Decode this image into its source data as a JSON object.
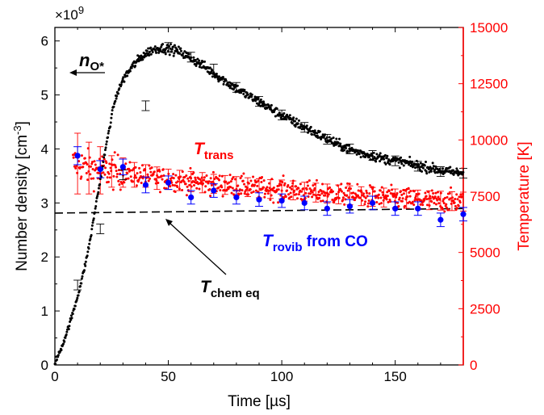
{
  "chart_data": {
    "type": "scatter",
    "title": "",
    "xlabel": "Time [µs]",
    "ylabel_left": "Number density [cm",
    "ylabel_left_sup": "-3",
    "ylabel_left_end": "]",
    "ylabel_right": "Temperature [K]",
    "multiplier": "×10",
    "multiplier_exp": "9",
    "xlim": [
      0,
      180
    ],
    "ylim_left": [
      0,
      6.25
    ],
    "ylim_right": [
      0,
      15000
    ],
    "xticks": [
      0,
      50,
      100,
      150
    ],
    "yticks_left": [
      0,
      1,
      2,
      3,
      4,
      5,
      6
    ],
    "yticks_right": [
      0,
      2500,
      5000,
      7500,
      10000,
      12500,
      15000
    ],
    "colors": {
      "density": "#000000",
      "trans": "#ff0000",
      "rovib": "#0000ff",
      "right_axis": "#ff0000",
      "chem_eq": "#000000"
    },
    "annotations": {
      "n_main": "n",
      "n_sub": "O*",
      "t_trans_main": "T",
      "t_trans_sub": "trans",
      "t_rovib_main": "T",
      "t_rovib_sub": "rovib",
      "t_rovib_suffix": " from CO",
      "t_chem_main": "T",
      "t_chem_sub": "chem eq"
    },
    "series": [
      {
        "label": "n_O*",
        "axis": "left",
        "style": "scatter",
        "x": [
          0,
          2,
          4,
          6,
          8,
          10,
          12,
          14,
          16,
          18,
          20,
          22,
          24,
          26,
          28,
          30,
          34,
          38,
          42,
          46,
          50,
          55,
          60,
          65,
          70,
          75,
          80,
          85,
          90,
          95,
          100,
          105,
          110,
          115,
          120,
          125,
          130,
          135,
          140,
          145,
          150,
          155,
          160,
          165,
          170,
          175,
          178
        ],
        "y": [
          0.05,
          0.22,
          0.45,
          0.7,
          0.97,
          1.27,
          1.6,
          1.98,
          2.42,
          2.95,
          3.42,
          3.92,
          4.38,
          4.82,
          5.08,
          5.28,
          5.52,
          5.7,
          5.82,
          5.87,
          5.86,
          5.8,
          5.68,
          5.55,
          5.4,
          5.26,
          5.12,
          4.99,
          4.87,
          4.75,
          4.62,
          4.51,
          4.4,
          4.29,
          4.18,
          4.08,
          3.99,
          3.92,
          3.87,
          3.82,
          3.78,
          3.74,
          3.69,
          3.65,
          3.6,
          3.57,
          3.56
        ],
        "error_x": [
          10,
          20,
          30,
          40,
          50,
          60,
          70,
          80,
          90,
          100,
          110,
          120,
          130,
          140,
          150,
          160,
          170,
          180
        ],
        "error_y": [
          1.48,
          2.52,
          3.52,
          4.8,
          5.88,
          5.7,
          5.48,
          5.14,
          4.88,
          4.63,
          4.4,
          4.18,
          4.0,
          3.88,
          3.78,
          3.68,
          3.58,
          3.55
        ],
        "error_half": 0.09
      },
      {
        "label": "T_trans",
        "axis": "right",
        "style": "scatter",
        "x": [
          10,
          15,
          20,
          25,
          30,
          35,
          40,
          45,
          50,
          55,
          60,
          65,
          70,
          75,
          80,
          85,
          90,
          95,
          100,
          105,
          110,
          115,
          120,
          125,
          130,
          135,
          140,
          145,
          150,
          155,
          160,
          165,
          170,
          175,
          180
        ],
        "y": [
          8950,
          8750,
          8650,
          8600,
          8550,
          8450,
          8400,
          8300,
          8250,
          8200,
          8150,
          8100,
          8050,
          8000,
          7950,
          7900,
          7850,
          7820,
          7800,
          7760,
          7700,
          7660,
          7620,
          7580,
          7540,
          7500,
          7470,
          7440,
          7400,
          7380,
          7350,
          7320,
          7300,
          7280,
          7260
        ],
        "error_x": [
          10,
          15,
          20,
          25,
          30,
          35,
          40,
          45,
          50,
          55,
          60,
          65,
          70,
          75,
          80,
          85,
          90,
          95,
          100,
          105,
          110,
          115,
          120,
          125,
          130,
          135,
          140,
          145,
          150,
          155,
          160,
          165,
          170,
          175,
          180
        ],
        "error_y": [
          8950,
          8750,
          8650,
          8600,
          8550,
          8450,
          8400,
          8300,
          8250,
          8200,
          8150,
          8100,
          8050,
          8000,
          7950,
          7900,
          7850,
          7820,
          7800,
          7760,
          7700,
          7660,
          7620,
          7580,
          7540,
          7500,
          7470,
          7440,
          7400,
          7380,
          7350,
          7320,
          7300,
          7280,
          7260
        ],
        "error_half_right": [
          1350,
          1150,
          1050,
          700,
          650,
          550,
          500,
          500,
          450,
          450,
          450,
          450,
          420,
          420,
          420,
          420,
          420,
          420,
          420,
          420,
          420,
          420,
          420,
          420,
          420,
          420,
          420,
          420,
          420,
          420,
          420,
          420,
          420,
          420,
          420
        ]
      },
      {
        "label": "T_rovib from CO",
        "axis": "right",
        "style": "points",
        "x": [
          10,
          20,
          30,
          40,
          50,
          60,
          70,
          80,
          90,
          100,
          110,
          120,
          130,
          140,
          150,
          160,
          170,
          180
        ],
        "y": [
          9300,
          8700,
          8800,
          8000,
          8100,
          7450,
          7750,
          7450,
          7350,
          7300,
          7200,
          6950,
          7050,
          7200,
          6950,
          6950,
          6450,
          6700
        ],
        "error_half_right": [
          400,
          380,
          350,
          350,
          300,
          300,
          300,
          300,
          300,
          300,
          300,
          300,
          300,
          300,
          300,
          300,
          300,
          300
        ]
      },
      {
        "label": "T_chem eq",
        "axis": "right",
        "style": "dashed",
        "x": [
          0,
          180
        ],
        "y": [
          6750,
          6950
        ]
      }
    ]
  }
}
